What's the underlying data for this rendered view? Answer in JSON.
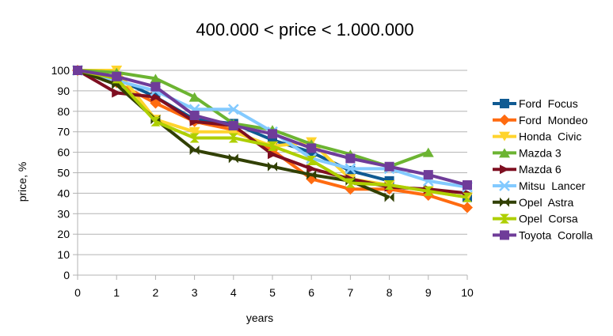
{
  "chart_data": {
    "type": "line",
    "title": "400.000 < price < 1.000.000",
    "xlabel": "years",
    "ylabel": "price, %",
    "x": [
      0,
      1,
      2,
      3,
      4,
      5,
      6,
      7,
      8,
      9,
      10
    ],
    "xlim": [
      0,
      10
    ],
    "ylim": [
      0,
      100
    ],
    "yticks": [
      0,
      10,
      20,
      30,
      40,
      50,
      60,
      70,
      80,
      90,
      100
    ],
    "grid": true,
    "legend_position": "right",
    "series": [
      {
        "name": "Ford  Focus",
        "color": "#0f5a92",
        "marker": "square",
        "values": [
          100,
          96,
          87,
          76,
          74,
          66,
          60,
          51,
          46,
          null,
          38
        ]
      },
      {
        "name": "Ford  Mondeo",
        "color": "#ff6b10",
        "marker": "diamond",
        "values": [
          100,
          94,
          84,
          75,
          71,
          61,
          47,
          42,
          42,
          39,
          33
        ]
      },
      {
        "name": "Honda  Civic",
        "color": "#ffd42e",
        "marker": "triangle-down",
        "values": [
          100,
          100,
          76,
          70,
          70,
          63,
          65,
          47,
          44,
          41,
          38
        ]
      },
      {
        "name": "Mazda 3",
        "color": "#6cb432",
        "marker": "triangle-up",
        "values": [
          100,
          99,
          96,
          87,
          74,
          71,
          64,
          59,
          53,
          60,
          null
        ]
      },
      {
        "name": "Mazda 6",
        "color": "#7e0f21",
        "marker": "triangle-right",
        "values": [
          100,
          89,
          87,
          75,
          73,
          59,
          52,
          47,
          43,
          42,
          40
        ]
      },
      {
        "name": "Mitsu  Lancer",
        "color": "#83caff",
        "marker": "x",
        "values": [
          100,
          95,
          90,
          81,
          81,
          70,
          57,
          52,
          52,
          46,
          43
        ]
      },
      {
        "name": "Opel  Astra",
        "color": "#314004",
        "marker": "bowtie",
        "values": [
          100,
          93,
          76,
          61,
          57,
          53,
          49,
          46,
          38,
          null,
          null
        ]
      },
      {
        "name": "Opel  Corsa",
        "color": "#aecf00",
        "marker": "hourglass",
        "values": [
          100,
          96,
          75,
          67,
          67,
          63,
          56,
          45,
          44,
          41,
          38
        ]
      },
      {
        "name": "Toyota  Corolla",
        "color": "#6f3c99",
        "marker": "square",
        "values": [
          100,
          97,
          92,
          78,
          73,
          69,
          62,
          57,
          53,
          49,
          44
        ]
      }
    ]
  }
}
